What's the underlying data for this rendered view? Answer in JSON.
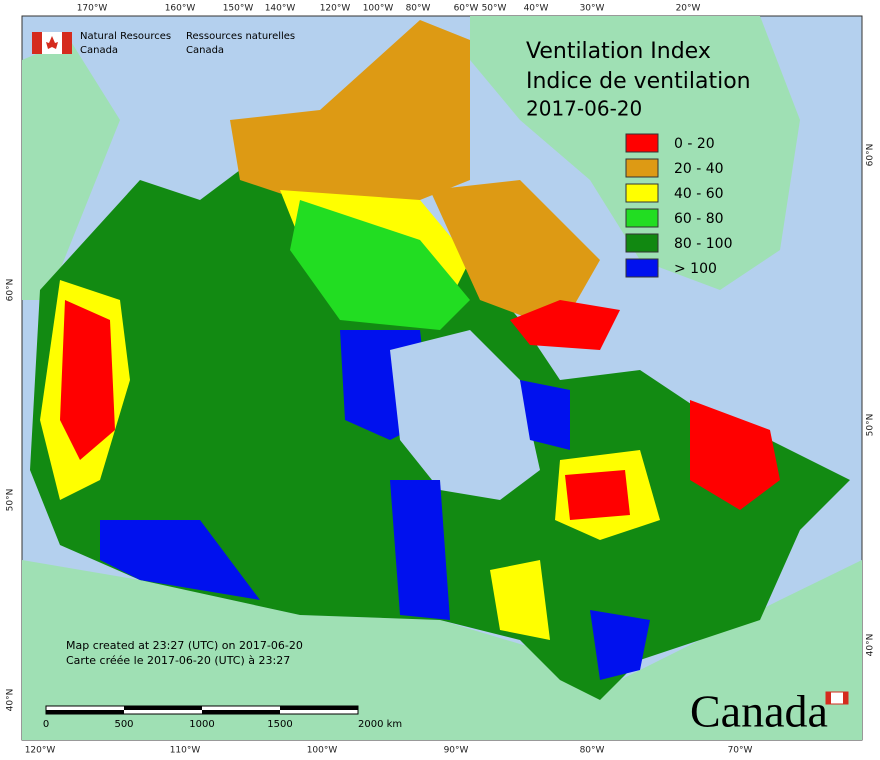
{
  "header": {
    "org_en_1": "Natural Resources",
    "org_en_2": "Canada",
    "org_fr_1": "Ressources naturelles",
    "org_fr_2": "Canada"
  },
  "title": {
    "lines": [
      "Ventilation Index",
      "Indice de ventilation",
      "2017-06-20"
    ]
  },
  "legend": {
    "items": [
      {
        "label": "0 - 20",
        "color": "#ff0000"
      },
      {
        "label": "20 - 40",
        "color": "#dd9a14"
      },
      {
        "label": "40 - 60",
        "color": "#ffff00"
      },
      {
        "label": "60 - 80",
        "color": "#22dd22"
      },
      {
        "label": "80 - 100",
        "color": "#118811"
      },
      {
        "label": "> 100",
        "color": "#0011ee"
      }
    ]
  },
  "graticule": {
    "top": [
      "170°W",
      "160°W",
      "150°W",
      "140°W",
      "120°W",
      "100°W",
      "80°W",
      "60°W",
      "50°W",
      "40°W",
      "30°W",
      "20°W"
    ],
    "bottom": [
      "120°W",
      "110°W",
      "100°W",
      "90°W",
      "80°W",
      "70°W"
    ],
    "left": [
      "60°N",
      "50°N",
      "40°N"
    ],
    "right": [
      "60°N",
      "50°N",
      "40°N"
    ]
  },
  "credits": [
    "Map created at 23:27 (UTC) on 2017-06-20",
    "Carte créée le 2017-06-20 (UTC) à 23:27"
  ],
  "scale_bar": {
    "labels": [
      "0",
      "500",
      "1000",
      "1500",
      "2000 km"
    ]
  },
  "wordmark": "Canada"
}
